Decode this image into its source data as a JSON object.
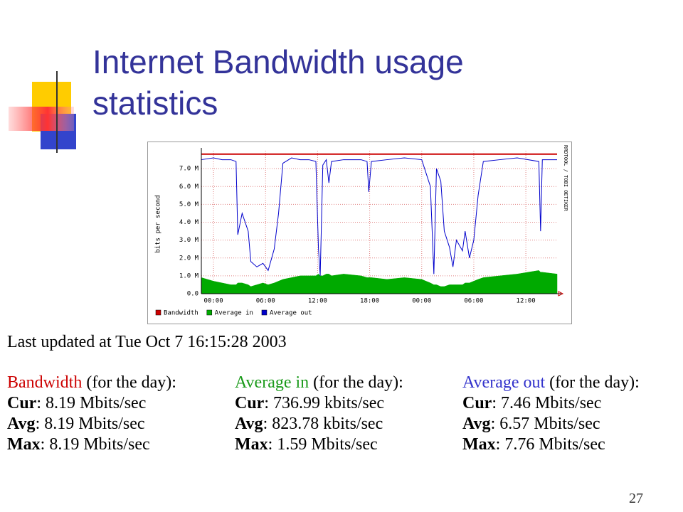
{
  "slide_title": "Internet Bandwidth usage statistics",
  "chart_data": {
    "type": "line",
    "ylabel": "bits per second",
    "credit": "RRDTOOL / TOBI OETIKER",
    "xlim": [
      -1.4,
      39.6
    ],
    "xticks": [
      {
        "value": 0,
        "label": "00:00"
      },
      {
        "value": 6,
        "label": "06:00"
      },
      {
        "value": 12,
        "label": "12:00"
      },
      {
        "value": 18,
        "label": "18:00"
      },
      {
        "value": 24,
        "label": "00:00"
      },
      {
        "value": 30,
        "label": "06:00"
      },
      {
        "value": 36,
        "label": "12:00"
      }
    ],
    "ylim": [
      0,
      8
    ],
    "yticks": [
      {
        "value": 0,
        "label": "0.0"
      },
      {
        "value": 1,
        "label": "1.0 M"
      },
      {
        "value": 2,
        "label": "2.0 M"
      },
      {
        "value": 3,
        "label": "3.0 M"
      },
      {
        "value": 4,
        "label": "4.0 M"
      },
      {
        "value": 5,
        "label": "5.0 M"
      },
      {
        "value": 6,
        "label": "6.0 M"
      },
      {
        "value": 7,
        "label": "7.0 M"
      }
    ],
    "grid": true,
    "series": [
      {
        "name": "Bandwidth",
        "color": "#cc0000",
        "x": [
          -1.4,
          39.6
        ],
        "values": [
          7.81,
          7.81
        ]
      },
      {
        "name": "Average in",
        "color": "#00aa00",
        "area": true,
        "x": [
          -1.4,
          0,
          1,
          2,
          2.6,
          2.8,
          3.3,
          4,
          4.3,
          5,
          5.7,
          6.3,
          7,
          7.5,
          8,
          9,
          10,
          11,
          11.8,
          12.1,
          12.3,
          12.6,
          13,
          13.3,
          13.6,
          15,
          17,
          17.7,
          17.9,
          18.2,
          20,
          22,
          24,
          25,
          25.4,
          25.7,
          26.2,
          26.6,
          27.2,
          27.6,
          28,
          28.7,
          29,
          29.5,
          30,
          30.5,
          31.1,
          33,
          35,
          37.5,
          37.7,
          37.9,
          39.6
        ],
        "values": [
          0.9,
          0.7,
          0.6,
          0.5,
          0.5,
          0.6,
          0.6,
          0.5,
          0.4,
          0.5,
          0.6,
          0.5,
          0.6,
          0.7,
          0.8,
          0.9,
          1.0,
          1.0,
          1.0,
          1.1,
          1.0,
          1.0,
          1.1,
          1.1,
          1.0,
          1.1,
          1.0,
          0.9,
          0.9,
          0.9,
          0.8,
          0.9,
          0.8,
          0.6,
          0.5,
          0.5,
          0.4,
          0.4,
          0.5,
          0.5,
          0.5,
          0.5,
          0.6,
          0.6,
          0.7,
          0.8,
          0.9,
          1.0,
          1.1,
          1.3,
          1.2,
          1.2,
          1.1
        ]
      },
      {
        "name": "Average out",
        "color": "#0000cc",
        "x": [
          -1.4,
          0,
          1,
          2,
          2.6,
          2.8,
          3.3,
          4,
          4.3,
          5,
          5.7,
          6.3,
          7,
          7.5,
          8,
          9,
          10,
          11,
          11.8,
          12.1,
          12.3,
          12.6,
          13,
          13.3,
          13.6,
          15,
          17,
          17.7,
          17.9,
          18.2,
          20,
          22,
          24,
          25,
          25.4,
          25.7,
          26.2,
          26.6,
          27.2,
          27.6,
          28,
          28.7,
          29,
          29.5,
          30,
          30.5,
          31.1,
          33,
          35,
          37.5,
          37.7,
          37.9,
          39.6
        ],
        "values": [
          7.5,
          7.6,
          7.5,
          7.5,
          7.4,
          3.3,
          4.5,
          3.5,
          1.8,
          1.5,
          1.7,
          1.3,
          2.5,
          4.5,
          7.3,
          7.6,
          7.5,
          7.5,
          7.4,
          2.5,
          1.0,
          7.2,
          7.5,
          6.2,
          7.4,
          7.5,
          7.5,
          7.4,
          5.7,
          7.4,
          7.5,
          7.6,
          7.5,
          6.0,
          1.1,
          7.0,
          6.3,
          3.5,
          2.6,
          1.5,
          3.0,
          2.4,
          3.5,
          2.0,
          3.0,
          5.5,
          7.4,
          7.5,
          7.6,
          7.4,
          3.5,
          7.5,
          7.5
        ]
      }
    ]
  },
  "last_updated": "Last updated at Tue Oct 7 16:15:28 2003",
  "stats": [
    {
      "name": "Bandwidth",
      "color": "#cc0000",
      "suffix": "(for the day):",
      "rows": [
        {
          "label": "Cur",
          "text": ": 8.19 Mbits/sec"
        },
        {
          "label": "Avg",
          "text": ": 8.19 Mbits/sec"
        },
        {
          "label": "Max",
          "text": ": 8.19 Mbits/sec"
        }
      ]
    },
    {
      "name": "Average in",
      "color": "#1a9a1a",
      "suffix": "(for the day):",
      "rows": [
        {
          "label": "Cur",
          "text": ": 736.99 kbits/sec"
        },
        {
          "label": "Avg",
          "text": ": 823.78 kbits/sec"
        },
        {
          "label": "Max",
          "text": ": 1.59 Mbits/sec"
        }
      ]
    },
    {
      "name": "Average out",
      "color": "#3333cc",
      "suffix": "(for the day):",
      "rows": [
        {
          "label": "Cur",
          "text": ": 7.46 Mbits/sec"
        },
        {
          "label": "Avg",
          "text": ": 6.57 Mbits/sec"
        },
        {
          "label": "Max",
          "text": ": 7.76 Mbits/sec"
        }
      ]
    }
  ],
  "page_number": "27"
}
